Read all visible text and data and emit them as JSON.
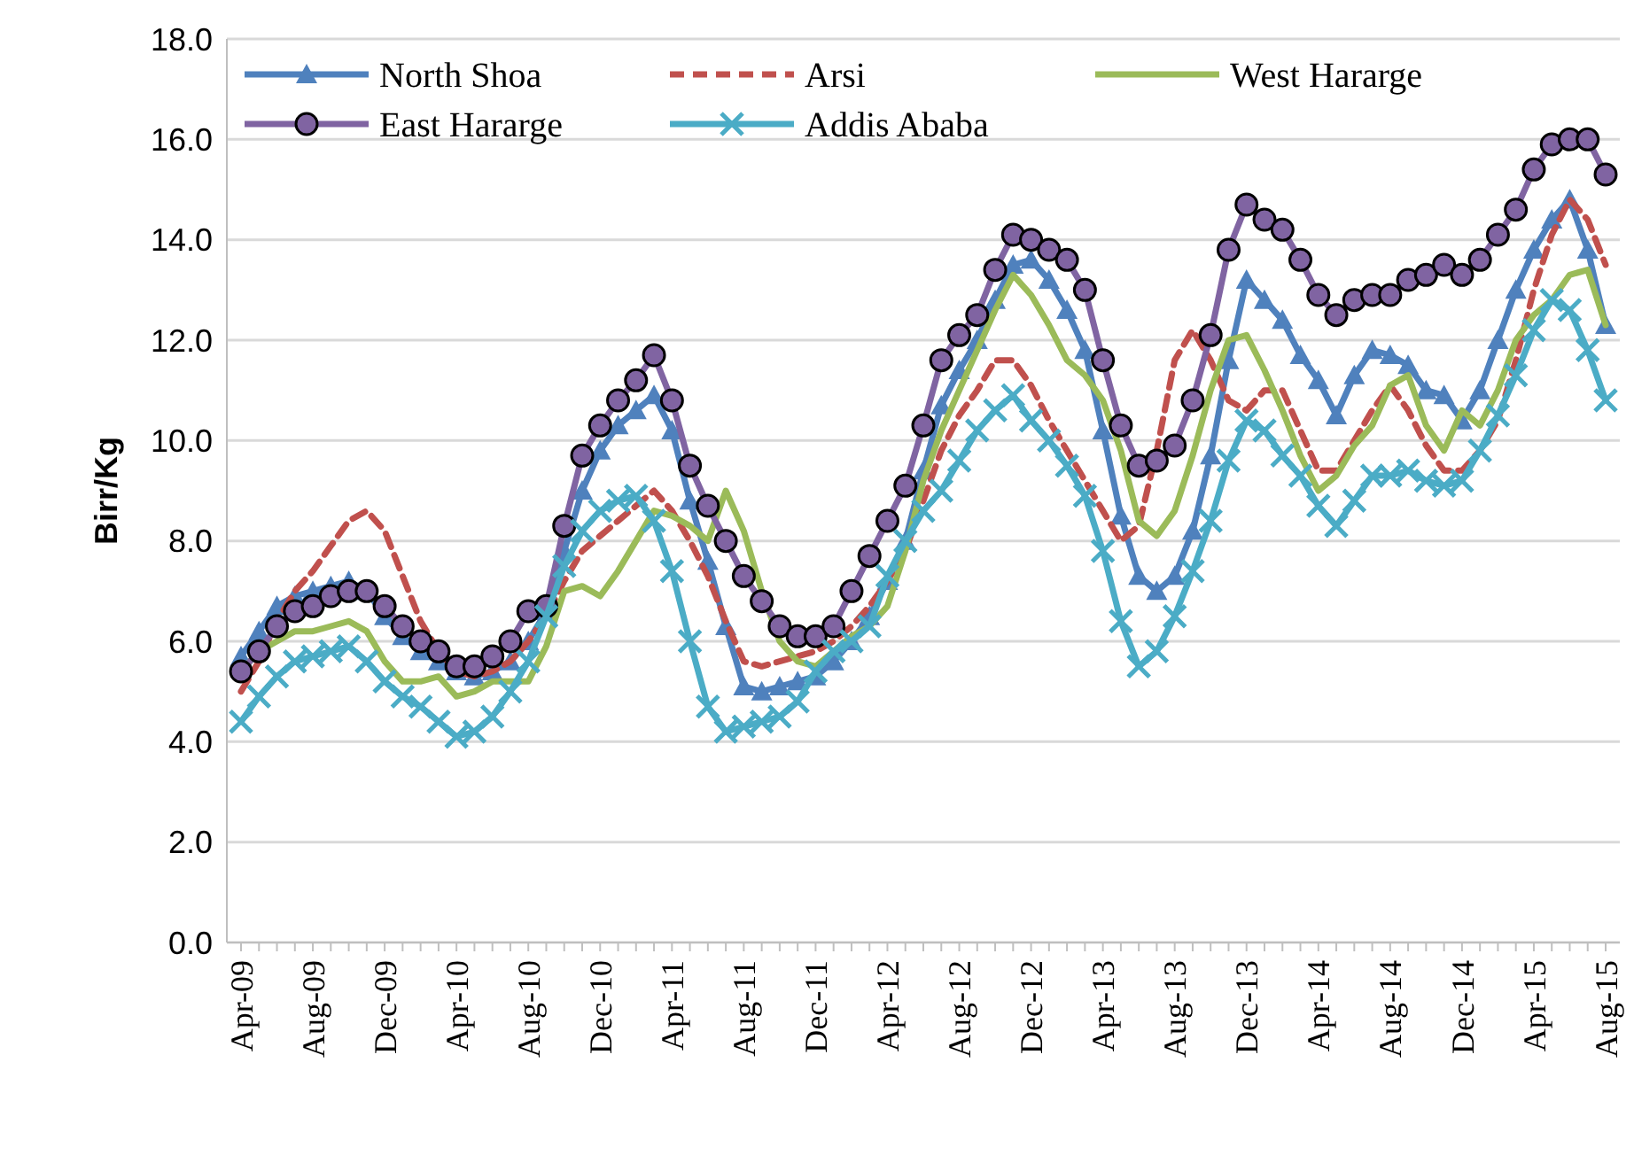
{
  "chart_data": {
    "type": "line",
    "ylabel": "Birr/Kg",
    "categories": [
      "Apr-09",
      null,
      null,
      null,
      "Aug-09",
      null,
      null,
      null,
      "Dec-09",
      null,
      null,
      null,
      "Apr-10",
      null,
      null,
      null,
      "Aug-10",
      null,
      null,
      null,
      "Dec-10",
      null,
      null,
      null,
      "Apr-11",
      null,
      null,
      null,
      "Aug-11",
      null,
      null,
      null,
      "Dec-11",
      null,
      null,
      null,
      "Apr-12",
      null,
      null,
      null,
      "Aug-12",
      null,
      null,
      null,
      "Dec-12",
      null,
      null,
      null,
      "Apr-13",
      null,
      null,
      null,
      "Aug-13",
      null,
      null,
      null,
      "Dec-13",
      null,
      null,
      null,
      "Apr-14",
      null,
      null,
      null,
      "Aug-14",
      null,
      null,
      null,
      "Dec-14",
      null,
      null,
      null,
      "Apr-15",
      null,
      null,
      null,
      "Aug-15"
    ],
    "ylim": [
      0,
      18
    ],
    "yticks": [
      {
        "value": 0,
        "label": "0.0"
      },
      {
        "value": 2,
        "label": "2.0"
      },
      {
        "value": 4,
        "label": "4.0"
      },
      {
        "value": 6,
        "label": "6.0"
      },
      {
        "value": 8,
        "label": "8.0"
      },
      {
        "value": 10,
        "label": "10.0"
      },
      {
        "value": 12,
        "label": "12.0"
      },
      {
        "value": 14,
        "label": "14.0"
      },
      {
        "value": 16,
        "label": "16.0"
      },
      {
        "value": 18,
        "label": "18.0"
      }
    ],
    "grid": "y",
    "legend": "top",
    "series": [
      {
        "name": "North Shoa",
        "color": "#4f81bd",
        "marker": "triangle",
        "line_style": "solid",
        "values": [
          5.7,
          6.2,
          6.7,
          6.9,
          7.0,
          7.1,
          7.2,
          7.0,
          6.5,
          6.1,
          5.8,
          5.6,
          5.4,
          5.3,
          5.4,
          5.6,
          6.0,
          6.6,
          7.8,
          9.0,
          9.8,
          10.3,
          10.6,
          10.9,
          10.2,
          8.8,
          7.6,
          6.3,
          5.1,
          5.0,
          5.1,
          5.2,
          5.3,
          5.6,
          6.0,
          6.5,
          7.2,
          8.0,
          9.4,
          10.7,
          11.4,
          12.0,
          12.8,
          13.5,
          13.6,
          13.2,
          12.6,
          11.8,
          10.2,
          8.5,
          7.3,
          7.0,
          7.3,
          8.2,
          9.7,
          11.6,
          13.2,
          12.8,
          12.4,
          11.7,
          11.2,
          10.5,
          11.3,
          11.8,
          11.7,
          11.5,
          11.0,
          10.9,
          10.4,
          11.0,
          12.0,
          13.0,
          13.8,
          14.4,
          14.8,
          13.8,
          12.3
        ]
      },
      {
        "name": "Arsi",
        "color": "#c0504d",
        "marker": "none",
        "line_style": "dashed",
        "values": [
          5.0,
          5.6,
          6.4,
          7.0,
          7.4,
          7.9,
          8.4,
          8.6,
          8.2,
          7.3,
          6.4,
          5.8,
          5.4,
          5.3,
          5.4,
          5.6,
          6.0,
          6.5,
          7.2,
          7.8,
          8.1,
          8.4,
          8.7,
          9.0,
          8.6,
          8.0,
          7.3,
          6.4,
          5.6,
          5.5,
          5.6,
          5.7,
          5.8,
          6.0,
          6.3,
          6.7,
          7.2,
          7.8,
          8.8,
          9.8,
          10.5,
          11.0,
          11.6,
          11.6,
          11.1,
          10.4,
          9.8,
          9.2,
          8.6,
          8.0,
          8.3,
          9.8,
          11.6,
          12.2,
          11.6,
          10.8,
          10.6,
          11.0,
          11.0,
          10.2,
          9.4,
          9.4,
          10.0,
          10.6,
          11.1,
          10.6,
          9.9,
          9.4,
          9.4,
          9.8,
          10.4,
          11.6,
          13.0,
          14.1,
          14.8,
          14.4,
          13.5
        ]
      },
      {
        "name": "West Hararge",
        "color": "#9bbb59",
        "marker": "none",
        "line_style": "solid",
        "values": [
          5.4,
          5.8,
          6.0,
          6.2,
          6.2,
          6.3,
          6.4,
          6.2,
          5.6,
          5.2,
          5.2,
          5.3,
          4.9,
          5.0,
          5.2,
          5.2,
          5.2,
          5.9,
          7.0,
          7.1,
          6.9,
          7.4,
          8.0,
          8.6,
          8.5,
          8.3,
          8.0,
          9.0,
          8.2,
          7.0,
          6.0,
          5.6,
          5.5,
          5.8,
          6.1,
          6.3,
          6.7,
          7.8,
          9.2,
          10.2,
          11.0,
          11.8,
          12.6,
          13.3,
          12.9,
          12.3,
          11.6,
          11.3,
          10.8,
          9.8,
          8.4,
          8.1,
          8.6,
          9.7,
          11.0,
          12.0,
          12.1,
          11.4,
          10.6,
          9.7,
          9.0,
          9.3,
          9.9,
          10.3,
          11.1,
          11.3,
          10.3,
          9.8,
          10.6,
          10.3,
          11.0,
          12.0,
          12.5,
          12.8,
          13.3,
          13.4,
          12.3
        ]
      },
      {
        "name": "East Hararge",
        "color": "#8064a2",
        "marker": "circle",
        "line_style": "solid",
        "values": [
          5.4,
          5.8,
          6.3,
          6.6,
          6.7,
          6.9,
          7.0,
          7.0,
          6.7,
          6.3,
          6.0,
          5.8,
          5.5,
          5.5,
          5.7,
          6.0,
          6.6,
          6.7,
          8.3,
          9.7,
          10.3,
          10.8,
          11.2,
          11.7,
          10.8,
          9.5,
          8.7,
          8.0,
          7.3,
          6.8,
          6.3,
          6.1,
          6.1,
          6.3,
          7.0,
          7.7,
          8.4,
          9.1,
          10.3,
          11.6,
          12.1,
          12.5,
          13.4,
          14.1,
          14.0,
          13.8,
          13.6,
          13.0,
          11.6,
          10.3,
          9.5,
          9.6,
          9.9,
          10.8,
          12.1,
          13.8,
          14.7,
          14.4,
          14.2,
          13.6,
          12.9,
          12.5,
          12.8,
          12.9,
          12.9,
          13.2,
          13.3,
          13.5,
          13.3,
          13.6,
          14.1,
          14.6,
          15.4,
          15.9,
          16.0,
          16.0,
          15.3
        ]
      },
      {
        "name": "Addis Ababa",
        "color": "#4bacc6",
        "marker": "cross",
        "line_style": "solid",
        "values": [
          4.4,
          4.9,
          5.3,
          5.6,
          5.7,
          5.8,
          5.9,
          5.6,
          5.2,
          4.9,
          4.7,
          4.4,
          4.1,
          4.2,
          4.5,
          5.0,
          5.6,
          6.5,
          7.5,
          8.2,
          8.6,
          8.8,
          8.9,
          8.4,
          7.4,
          6.0,
          4.7,
          4.2,
          4.3,
          4.4,
          4.5,
          4.8,
          5.4,
          5.8,
          6.0,
          6.3,
          7.3,
          8.0,
          8.6,
          9.0,
          9.6,
          10.2,
          10.6,
          10.9,
          10.4,
          10.0,
          9.5,
          8.9,
          7.8,
          6.4,
          5.5,
          5.8,
          6.5,
          7.4,
          8.4,
          9.6,
          10.4,
          10.2,
          9.7,
          9.3,
          8.7,
          8.3,
          8.8,
          9.3,
          9.3,
          9.4,
          9.2,
          9.1,
          9.2,
          9.8,
          10.5,
          11.3,
          12.2,
          12.8,
          12.6,
          11.8,
          10.8
        ]
      }
    ]
  }
}
